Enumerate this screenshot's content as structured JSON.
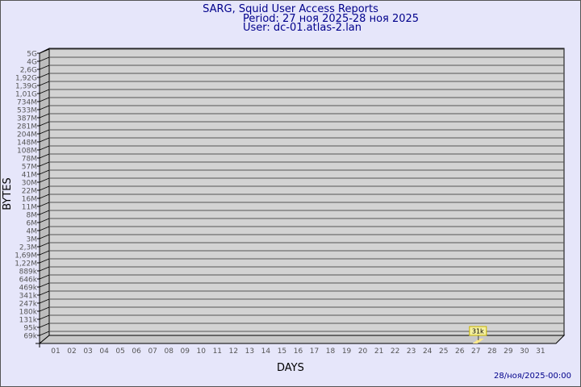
{
  "header": {
    "title": "SARG, Squid User Access Reports",
    "period": "Period: 27 ноя 2025-28 ноя 2025",
    "user": "User: dc-01.atlas-2.lan"
  },
  "footer": {
    "timestamp": "28/ноя/2025-00:00"
  },
  "chart_data": {
    "type": "bar",
    "xlabel": "DAYS",
    "ylabel": "BYTES",
    "y_scale": "log",
    "y_tick_labels": [
      "5G",
      "4G",
      "2,6G",
      "1,92G",
      "1,39G",
      "1,01G",
      "734M",
      "533M",
      "387M",
      "281M",
      "204M",
      "148M",
      "108M",
      "78M",
      "57M",
      "41M",
      "30M",
      "22M",
      "16M",
      "11M",
      "8M",
      "6M",
      "4M",
      "3M",
      "2,3M",
      "1,69M",
      "1,22M",
      "889k",
      "646k",
      "469k",
      "341k",
      "247k",
      "180k",
      "131k",
      "95k",
      "69k"
    ],
    "categories": [
      "01",
      "02",
      "03",
      "04",
      "05",
      "06",
      "07",
      "08",
      "09",
      "10",
      "11",
      "12",
      "13",
      "14",
      "15",
      "16",
      "17",
      "18",
      "19",
      "20",
      "21",
      "22",
      "23",
      "24",
      "25",
      "26",
      "27",
      "28",
      "29",
      "30",
      "31"
    ],
    "values": [
      {
        "day": "27",
        "value": 31000,
        "label": "31k"
      }
    ],
    "grid": true,
    "colors": {
      "plot": "#d3d3d3",
      "bar": "#ffe98a",
      "label_bg": "#f5f0a0",
      "label_border": "#c8b400",
      "text": "#00008b",
      "tick": "#555555"
    }
  }
}
